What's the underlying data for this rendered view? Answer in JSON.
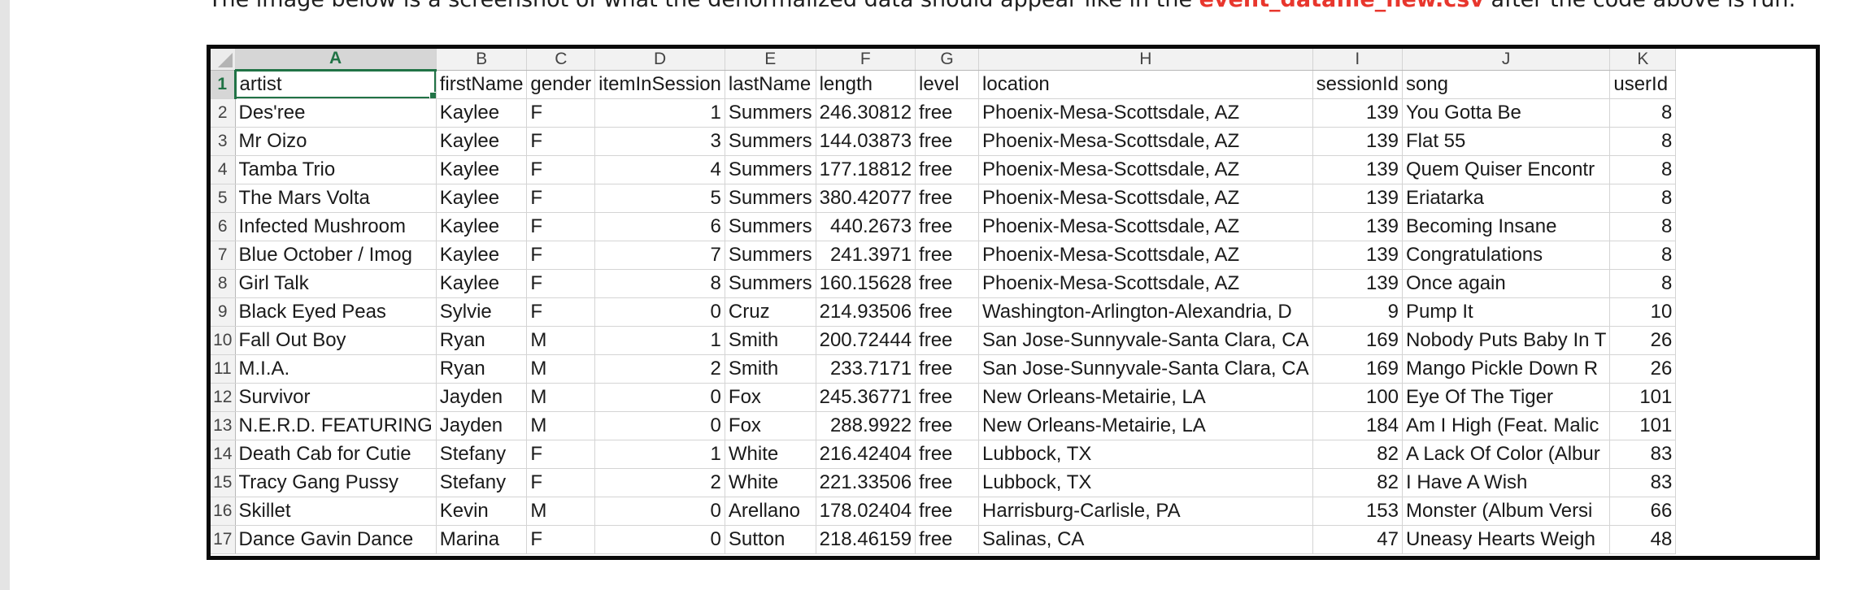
{
  "intro": {
    "before": "The image below is a screenshot of what the denormalized data should appear like in the ",
    "highlight": "event_datafile_new.csv",
    "after": " after the code above is run:"
  },
  "colors": {
    "accent_green": "#217346",
    "highlight_red": "#e8362d"
  },
  "sheet": {
    "column_letters": [
      "A",
      "B",
      "C",
      "D",
      "E",
      "F",
      "G",
      "H",
      "I",
      "J",
      "K"
    ],
    "headers": [
      "artist",
      "firstName",
      "gender",
      "itemInSession",
      "lastName",
      "length",
      "level",
      "location",
      "sessionId",
      "song",
      "userId"
    ],
    "rows": [
      {
        "n": "2",
        "artist": "Des'ree",
        "firstName": "Kaylee",
        "gender": "F",
        "itemInSession": "1",
        "lastName": "Summers",
        "length": "246.30812",
        "level": "free",
        "location": "Phoenix-Mesa-Scottsdale, AZ",
        "sessionId": "139",
        "song": "You Gotta Be",
        "userId": "8"
      },
      {
        "n": "3",
        "artist": "Mr Oizo",
        "firstName": "Kaylee",
        "gender": "F",
        "itemInSession": "3",
        "lastName": "Summers",
        "length": "144.03873",
        "level": "free",
        "location": "Phoenix-Mesa-Scottsdale, AZ",
        "sessionId": "139",
        "song": "Flat 55",
        "userId": "8"
      },
      {
        "n": "4",
        "artist": "Tamba Trio",
        "firstName": "Kaylee",
        "gender": "F",
        "itemInSession": "4",
        "lastName": "Summers",
        "length": "177.18812",
        "level": "free",
        "location": "Phoenix-Mesa-Scottsdale, AZ",
        "sessionId": "139",
        "song": "Quem Quiser Encontr",
        "userId": "8"
      },
      {
        "n": "5",
        "artist": "The Mars Volta",
        "firstName": "Kaylee",
        "gender": "F",
        "itemInSession": "5",
        "lastName": "Summers",
        "length": "380.42077",
        "level": "free",
        "location": "Phoenix-Mesa-Scottsdale, AZ",
        "sessionId": "139",
        "song": "Eriatarka",
        "userId": "8"
      },
      {
        "n": "6",
        "artist": "Infected Mushroom",
        "firstName": "Kaylee",
        "gender": "F",
        "itemInSession": "6",
        "lastName": "Summers",
        "length": "440.2673",
        "level": "free",
        "location": "Phoenix-Mesa-Scottsdale, AZ",
        "sessionId": "139",
        "song": "Becoming Insane",
        "userId": "8"
      },
      {
        "n": "7",
        "artist": "Blue October / Imog",
        "firstName": "Kaylee",
        "gender": "F",
        "itemInSession": "7",
        "lastName": "Summers",
        "length": "241.3971",
        "level": "free",
        "location": "Phoenix-Mesa-Scottsdale, AZ",
        "sessionId": "139",
        "song": "Congratulations",
        "userId": "8"
      },
      {
        "n": "8",
        "artist": "Girl Talk",
        "firstName": "Kaylee",
        "gender": "F",
        "itemInSession": "8",
        "lastName": "Summers",
        "length": "160.15628",
        "level": "free",
        "location": "Phoenix-Mesa-Scottsdale, AZ",
        "sessionId": "139",
        "song": "Once again",
        "userId": "8"
      },
      {
        "n": "9",
        "artist": "Black Eyed Peas",
        "firstName": "Sylvie",
        "gender": "F",
        "itemInSession": "0",
        "lastName": "Cruz",
        "length": "214.93506",
        "level": "free",
        "location": "Washington-Arlington-Alexandria, D",
        "sessionId": "9",
        "song": "Pump It",
        "userId": "10"
      },
      {
        "n": "10",
        "artist": "Fall Out Boy",
        "firstName": "Ryan",
        "gender": "M",
        "itemInSession": "1",
        "lastName": "Smith",
        "length": "200.72444",
        "level": "free",
        "location": "San Jose-Sunnyvale-Santa Clara, CA",
        "sessionId": "169",
        "song": "Nobody Puts Baby In T",
        "userId": "26"
      },
      {
        "n": "11",
        "artist": "M.I.A.",
        "firstName": "Ryan",
        "gender": "M",
        "itemInSession": "2",
        "lastName": "Smith",
        "length": "233.7171",
        "level": "free",
        "location": "San Jose-Sunnyvale-Santa Clara, CA",
        "sessionId": "169",
        "song": "Mango Pickle Down R",
        "userId": "26"
      },
      {
        "n": "12",
        "artist": "Survivor",
        "firstName": "Jayden",
        "gender": "M",
        "itemInSession": "0",
        "lastName": "Fox",
        "length": "245.36771",
        "level": "free",
        "location": "New Orleans-Metairie, LA",
        "sessionId": "100",
        "song": "Eye Of The Tiger",
        "userId": "101"
      },
      {
        "n": "13",
        "artist": "N.E.R.D. FEATURING",
        "firstName": "Jayden",
        "gender": "M",
        "itemInSession": "0",
        "lastName": "Fox",
        "length": "288.9922",
        "level": "free",
        "location": "New Orleans-Metairie, LA",
        "sessionId": "184",
        "song": "Am I High (Feat. Malic",
        "userId": "101"
      },
      {
        "n": "14",
        "artist": "Death Cab for Cutie",
        "firstName": "Stefany",
        "gender": "F",
        "itemInSession": "1",
        "lastName": "White",
        "length": "216.42404",
        "level": "free",
        "location": "Lubbock, TX",
        "sessionId": "82",
        "song": "A Lack Of Color (Albur",
        "userId": "83"
      },
      {
        "n": "15",
        "artist": "Tracy Gang Pussy",
        "firstName": "Stefany",
        "gender": "F",
        "itemInSession": "2",
        "lastName": "White",
        "length": "221.33506",
        "level": "free",
        "location": "Lubbock, TX",
        "sessionId": "82",
        "song": "I Have A Wish",
        "userId": "83"
      },
      {
        "n": "16",
        "artist": "Skillet",
        "firstName": "Kevin",
        "gender": "M",
        "itemInSession": "0",
        "lastName": "Arellano",
        "length": "178.02404",
        "level": "free",
        "location": "Harrisburg-Carlisle, PA",
        "sessionId": "153",
        "song": "Monster (Album Versi",
        "userId": "66"
      },
      {
        "n": "17",
        "artist": "Dance Gavin Dance",
        "firstName": "Marina",
        "gender": "F",
        "itemInSession": "0",
        "lastName": "Sutton",
        "length": "218.46159",
        "level": "free",
        "location": "Salinas, CA",
        "sessionId": "47",
        "song": "Uneasy Hearts Weigh",
        "userId": "48"
      }
    ]
  }
}
